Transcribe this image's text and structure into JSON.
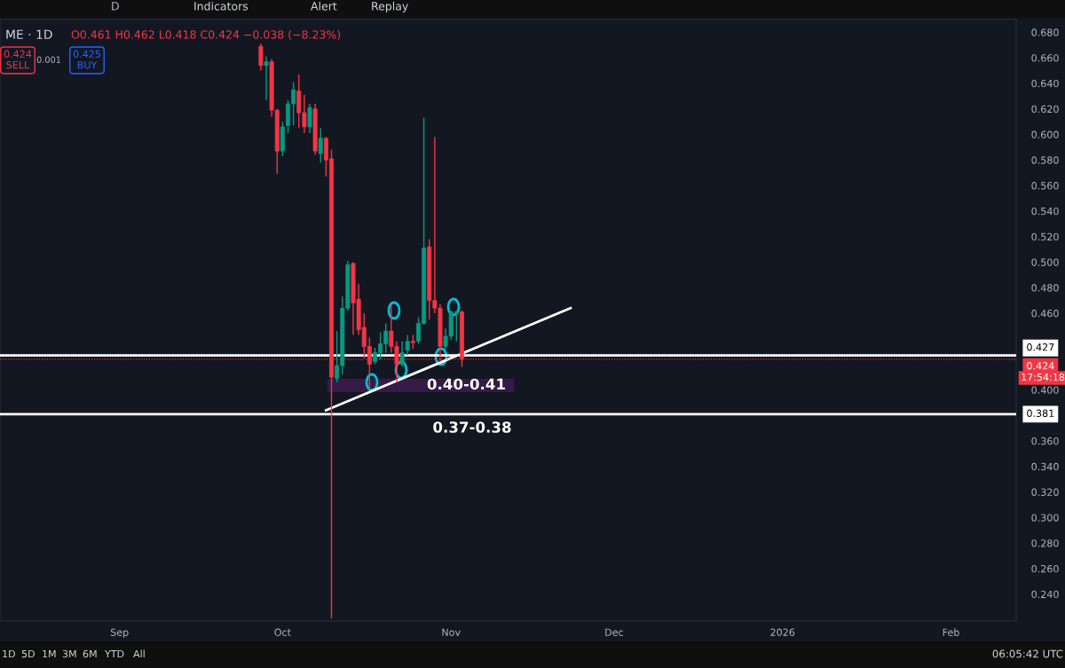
{
  "chart_data": {
    "type": "candlestick",
    "title": "ME · 1D",
    "subtitle": "O0.461 H0.462 L0.418 C0.424 −0.038 (−8.23%)",
    "x": [
      "2025-09-27",
      "2025-09-28",
      "2025-09-29",
      "2025-09-30",
      "2025-10-01",
      "2025-10-02",
      "2025-10-03",
      "2025-10-04",
      "2025-10-05",
      "2025-10-06",
      "2025-10-07",
      "2025-10-08",
      "2025-10-09",
      "2025-10-10",
      "2025-10-11",
      "2025-10-12",
      "2025-10-13",
      "2025-10-14",
      "2025-10-15",
      "2025-10-16",
      "2025-10-17",
      "2025-10-18",
      "2025-10-19",
      "2025-10-20",
      "2025-10-21",
      "2025-10-22",
      "2025-10-23",
      "2025-10-24",
      "2025-10-25",
      "2025-10-26",
      "2025-10-27",
      "2025-10-28",
      "2025-10-29",
      "2025-10-30",
      "2025-10-31",
      "2025-11-01",
      "2025-11-02",
      "2025-11-03"
    ],
    "ohlc": [
      [
        0.669,
        0.671,
        0.65,
        0.654
      ],
      [
        0.654,
        0.661,
        0.627,
        0.657
      ],
      [
        0.657,
        0.659,
        0.614,
        0.619
      ],
      [
        0.619,
        0.62,
        0.569,
        0.587
      ],
      [
        0.587,
        0.61,
        0.583,
        0.606
      ],
      [
        0.607,
        0.627,
        0.601,
        0.624
      ],
      [
        0.624,
        0.641,
        0.607,
        0.635
      ],
      [
        0.634,
        0.647,
        0.605,
        0.617
      ],
      [
        0.617,
        0.631,
        0.601,
        0.606
      ],
      [
        0.606,
        0.624,
        0.601,
        0.621
      ],
      [
        0.62,
        0.624,
        0.584,
        0.587
      ],
      [
        0.585,
        0.605,
        0.578,
        0.597
      ],
      [
        0.597,
        0.598,
        0.567,
        0.58
      ],
      [
        0.581,
        0.588,
        0.221,
        0.41
      ],
      [
        0.409,
        0.446,
        0.406,
        0.419
      ],
      [
        0.419,
        0.473,
        0.412,
        0.464
      ],
      [
        0.464,
        0.501,
        0.462,
        0.498
      ],
      [
        0.499,
        0.5,
        0.443,
        0.468
      ],
      [
        0.471,
        0.483,
        0.443,
        0.447
      ],
      [
        0.449,
        0.46,
        0.425,
        0.434
      ],
      [
        0.434,
        0.441,
        0.4,
        0.42
      ],
      [
        0.422,
        0.433,
        0.42,
        0.429
      ],
      [
        0.429,
        0.445,
        0.424,
        0.436
      ],
      [
        0.436,
        0.452,
        0.429,
        0.446
      ],
      [
        0.446,
        0.467,
        0.429,
        0.434
      ],
      [
        0.434,
        0.438,
        0.406,
        0.42
      ],
      [
        0.42,
        0.438,
        0.418,
        0.429
      ],
      [
        0.431,
        0.443,
        0.427,
        0.438
      ],
      [
        0.438,
        0.443,
        0.432,
        0.437
      ],
      [
        0.438,
        0.457,
        0.436,
        0.452
      ],
      [
        0.452,
        0.613,
        0.451,
        0.511
      ],
      [
        0.512,
        0.518,
        0.455,
        0.47
      ],
      [
        0.47,
        0.598,
        0.46,
        0.464
      ],
      [
        0.464,
        0.467,
        0.422,
        0.434
      ],
      [
        0.434,
        0.448,
        0.432,
        0.442
      ],
      [
        0.442,
        0.462,
        0.439,
        0.461
      ],
      [
        0.46,
        0.462,
        0.438,
        0.461
      ],
      [
        0.461,
        0.462,
        0.418,
        0.424
      ]
    ],
    "colors": [
      "#f23645",
      "#089981",
      "#f23645",
      "#f23645",
      "#089981",
      "#089981",
      "#089981",
      "#f23645",
      "#f23645",
      "#089981",
      "#f23645",
      "#089981",
      "#f23645",
      "#f23645",
      "#089981",
      "#089981",
      "#089981",
      "#f23645",
      "#f23645",
      "#f23645",
      "#f23645",
      "#089981",
      "#089981",
      "#089981",
      "#f23645",
      "#f23645",
      "#089981",
      "#089981",
      "#f23645",
      "#089981",
      "#089981",
      "#f23645",
      "#f23645",
      "#f23645",
      "#089981",
      "#089981",
      "#089981",
      "#f23645"
    ],
    "series": [
      {
        "type": "line",
        "x": [
          "2025-10-09",
          "2025-11-23"
        ],
        "values": [
          0.384,
          0.464
        ],
        "color": "#ffffff"
      }
    ],
    "ref_lines": [
      {
        "axis": "y",
        "value": 0.427,
        "label": "0.427",
        "color": "#ffffff",
        "line_style": "solid"
      },
      {
        "axis": "y",
        "value": 0.381,
        "label": "0.381",
        "color": "#ffffff",
        "line_style": "solid"
      },
      {
        "axis": "y",
        "value": 0.424,
        "label": "0.424",
        "color": "#f23645",
        "line_style": "dotted"
      }
    ],
    "bands": [
      {
        "axis": "y",
        "from": 0.399,
        "to": 0.408,
        "label": "0.40-0.41",
        "color": "#9c27b0"
      }
    ],
    "annotations": [
      "0.37-0.38",
      "D",
      "Indicators",
      "Alert",
      "Replay",
      "1D",
      "5D",
      "1M",
      "3M",
      "6M",
      "YTD",
      "All",
      "06:05:42 UTC",
      "0.424\nSELL",
      "0.001",
      "0.425\nBUY",
      "17:54:18"
    ],
    "xlim": [
      "2025-08-10",
      "2026-02-13"
    ],
    "xticks": [
      {
        "value": "2025-09-01",
        "label": "Sep"
      },
      {
        "value": "2025-10-01",
        "label": "Oct"
      },
      {
        "value": "2025-11-01",
        "label": "Nov"
      },
      {
        "value": "2025-12-01",
        "label": "Dec"
      },
      {
        "value": "2026-01-01",
        "label": "2026"
      },
      {
        "value": "2026-02-01",
        "label": "Feb"
      }
    ],
    "ylim": [
      0.219,
      0.69
    ],
    "yticks": [
      {
        "value": 0.24,
        "label": "0.240"
      },
      {
        "value": 0.26,
        "label": "0.260"
      },
      {
        "value": 0.28,
        "label": "0.280"
      },
      {
        "value": 0.3,
        "label": "0.300"
      },
      {
        "value": 0.32,
        "label": "0.320"
      },
      {
        "value": 0.34,
        "label": "0.340"
      },
      {
        "value": 0.36,
        "label": "0.360"
      },
      {
        "value": 0.4,
        "label": "0.400"
      },
      {
        "value": 0.46,
        "label": "0.460"
      },
      {
        "value": 0.48,
        "label": "0.480"
      },
      {
        "value": 0.5,
        "label": "0.500"
      },
      {
        "value": 0.52,
        "label": "0.520"
      },
      {
        "value": 0.54,
        "label": "0.540"
      },
      {
        "value": 0.56,
        "label": "0.560"
      },
      {
        "value": 0.58,
        "label": "0.580"
      },
      {
        "value": 0.6,
        "label": "0.600"
      },
      {
        "value": 0.62,
        "label": "0.620"
      },
      {
        "value": 0.64,
        "label": "0.640"
      },
      {
        "value": 0.66,
        "label": "0.660"
      },
      {
        "value": 0.68,
        "label": "0.680"
      }
    ]
  }
}
